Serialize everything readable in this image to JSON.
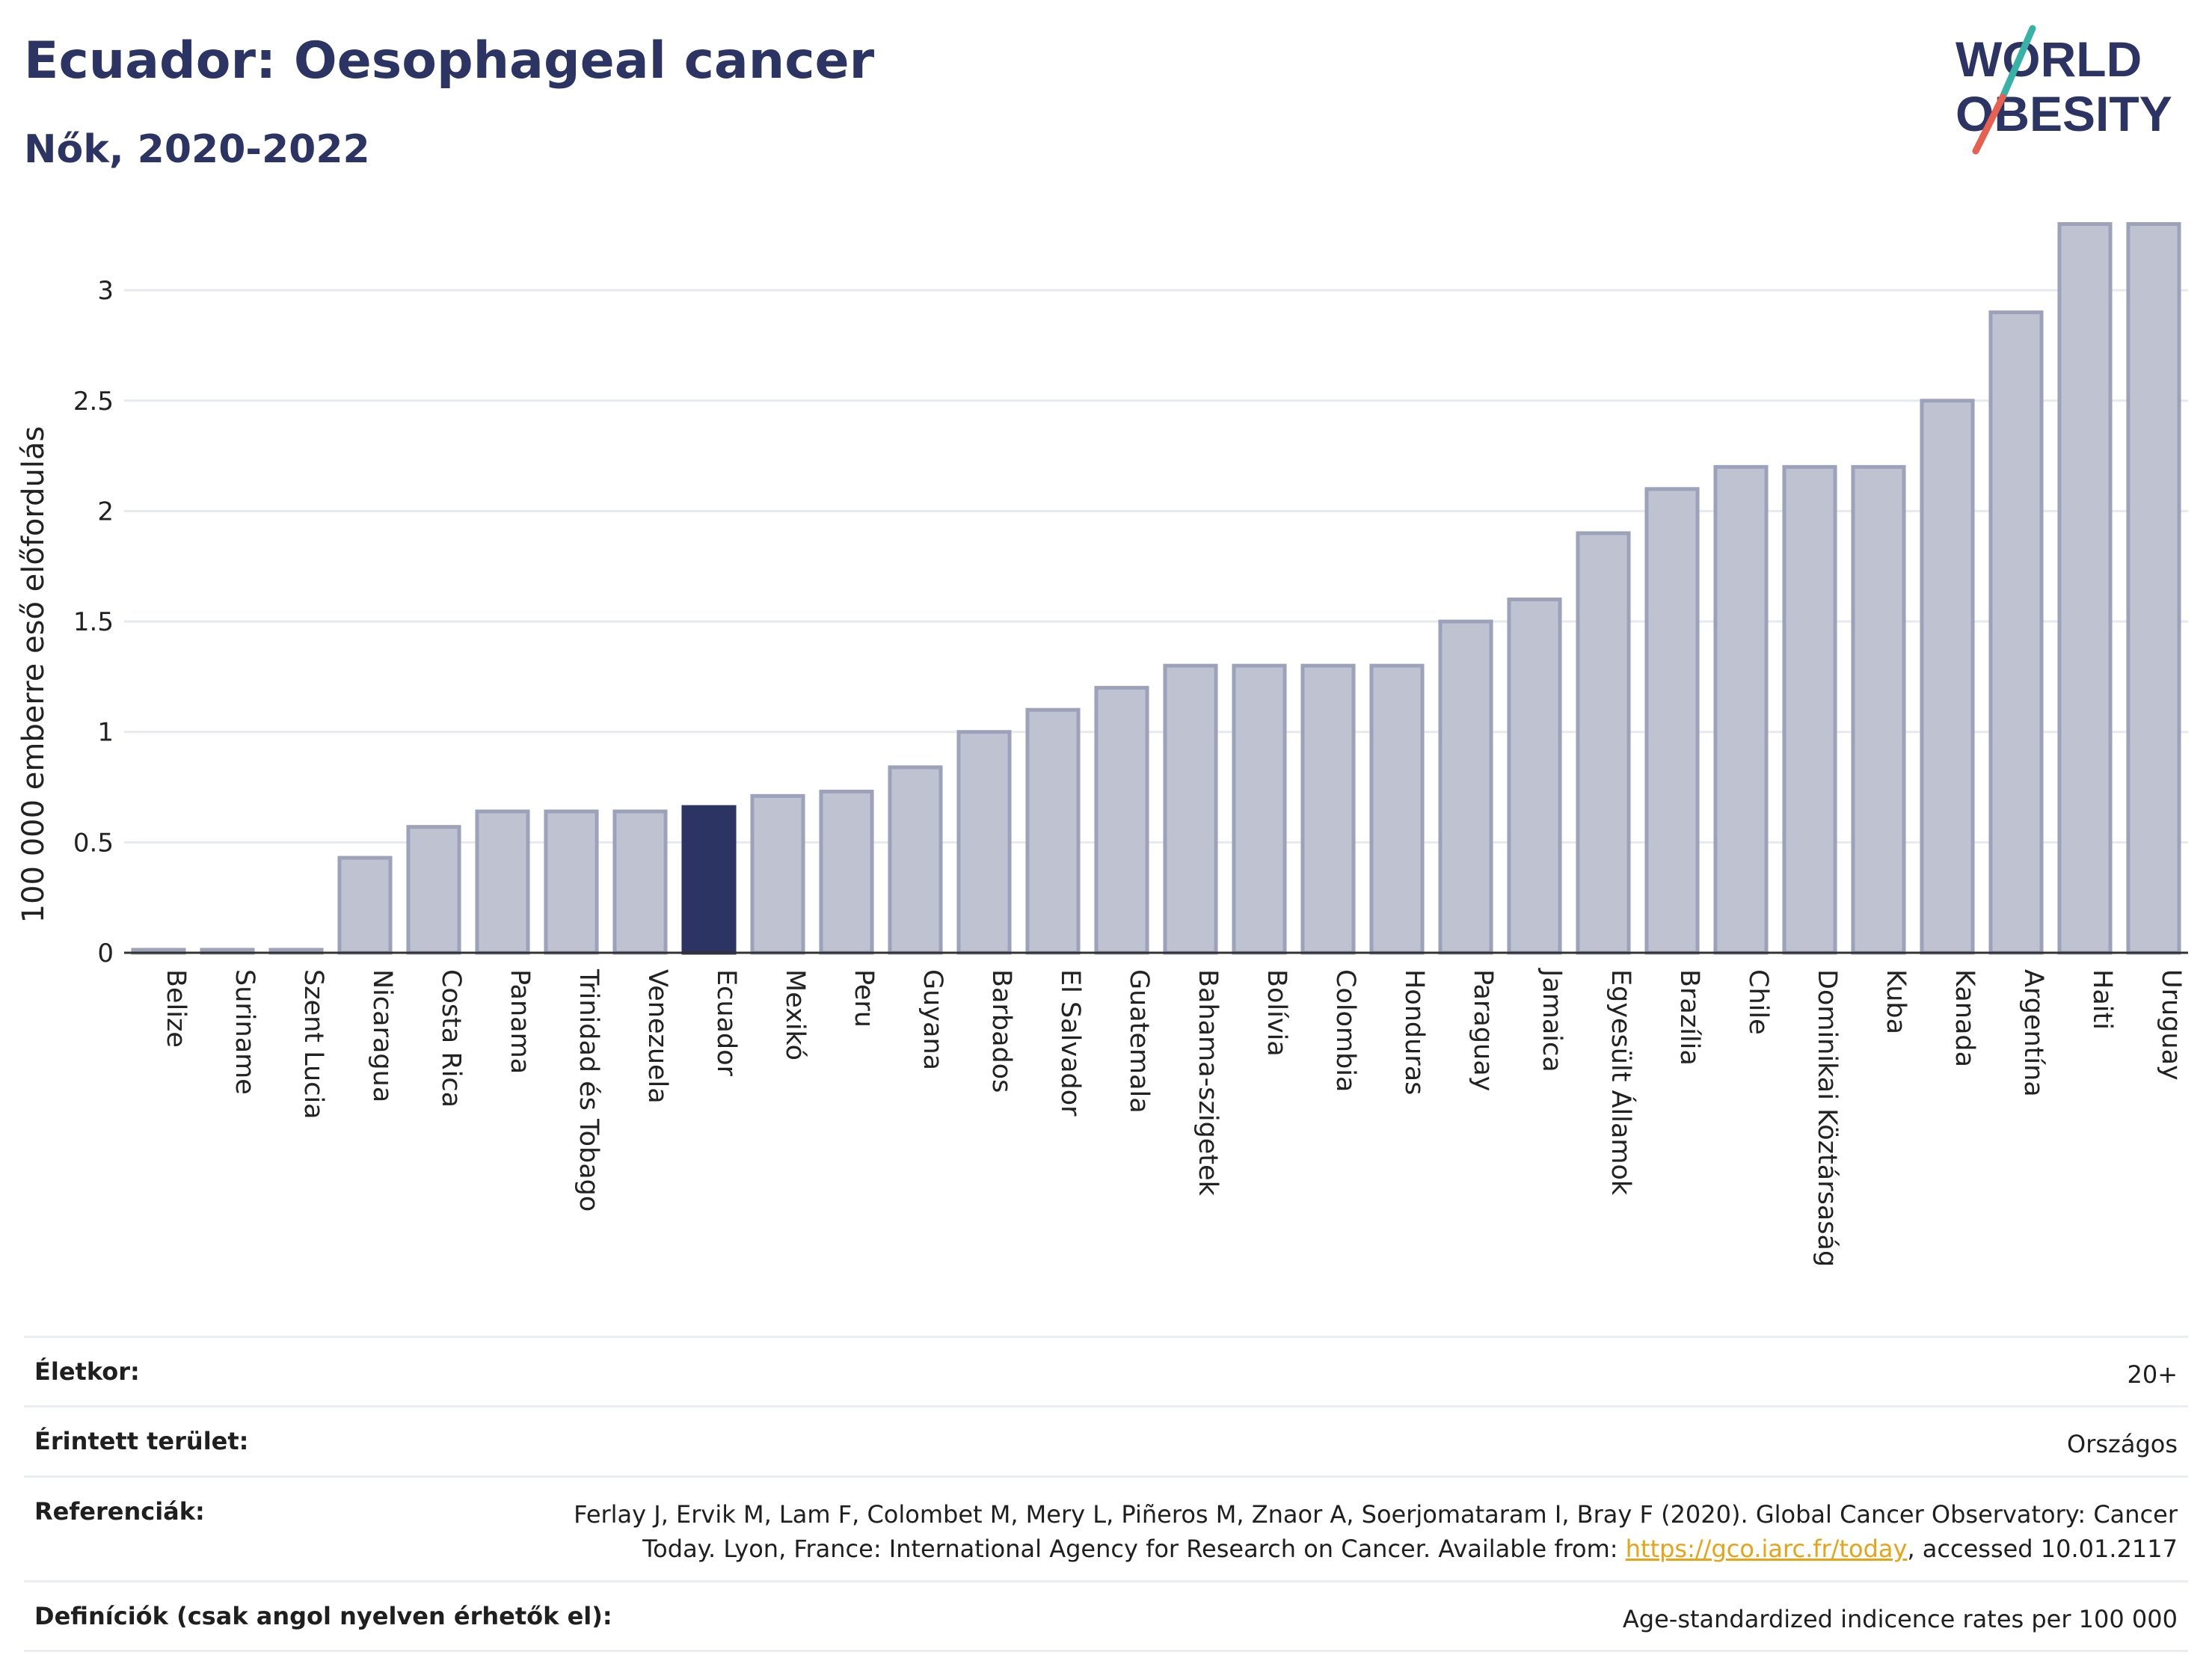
{
  "header": {
    "title": "Ecuador: Oesophageal cancer",
    "subtitle": "Nők, 2020-2022"
  },
  "logo": {
    "line1": "WORLD",
    "line2": "OBESITY"
  },
  "colors": {
    "highlight": "#2b3462",
    "bar_fill": "#bfc2d0",
    "bar_stroke": "#9da2ba",
    "grid": "#e6e9ef",
    "text": "#2b3462",
    "link": "#e8a317",
    "logo_slash_teal": "#38b2a6",
    "logo_slash_red": "#e8604f"
  },
  "chart_data": {
    "type": "bar",
    "title": "Ecuador: Oesophageal cancer",
    "subtitle": "Nők, 2020-2022",
    "xlabel": "",
    "ylabel": "100 000 emberre eső előfordulás",
    "ylim": [
      0,
      3.4
    ],
    "yticks": [
      "0",
      "0.5",
      "1",
      "1.5",
      "2",
      "2.5",
      "3"
    ],
    "grid": true,
    "highlight": "Ecuador",
    "categories": [
      "Belize",
      "Suriname",
      "Szent Lucia",
      "Nicaragua",
      "Costa Rica",
      "Panama",
      "Trinidad és Tobago",
      "Venezuela",
      "Ecuador",
      "Mexikó",
      "Peru",
      "Guyana",
      "Barbados",
      "El Salvador",
      "Guatemala",
      "Bahama-szigetek",
      "Bolívia",
      "Colombia",
      "Honduras",
      "Paraguay",
      "Jamaica",
      "Egyesült Államok",
      "Brazília",
      "Chile",
      "Dominikai Köztársaság",
      "Kuba",
      "Kanada",
      "Argentína",
      "Haiti",
      "Uruguay"
    ],
    "values": [
      0.0,
      0.0,
      0.0,
      0.43,
      0.57,
      0.64,
      0.64,
      0.64,
      0.66,
      0.71,
      0.73,
      0.84,
      1.0,
      1.1,
      1.2,
      1.3,
      1.3,
      1.3,
      1.3,
      1.5,
      1.6,
      1.9,
      2.1,
      2.2,
      2.2,
      2.2,
      2.5,
      2.9,
      3.3,
      3.3
    ]
  },
  "info": [
    {
      "key": "Életkor:",
      "value": "20+"
    },
    {
      "key": "Érintett terület:",
      "value": "Országos"
    },
    {
      "key": "Referenciák:",
      "value_line1": "Ferlay J, Ervik M, Lam F, Colombet M, Mery L, Piñeros M, Znaor A, Soerjomataram I, Bray F (2020). Global Cancer Observatory: Cancer",
      "value_line2_pre": "Today. Lyon, France: International Agency for Research on Cancer. Available from: ",
      "link": "https://gco.iarc.fr/today",
      "value_line2_post": ", accessed 10.01.2117"
    },
    {
      "key": "Definíciók (csak angol nyelven érhetők el):",
      "value": "Age-standardized indicence rates per 100 000"
    }
  ]
}
